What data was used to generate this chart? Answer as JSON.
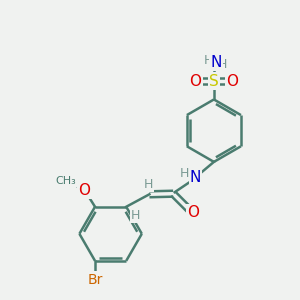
{
  "background_color": "#f0f2f0",
  "bond_color": "#4a7c6f",
  "bond_width": 1.8,
  "S_color": "#c8c800",
  "O_color": "#e00000",
  "N_color": "#0000cc",
  "Br_color": "#cc6600",
  "H_color": "#7a9a94",
  "C_color": "#4a7c6f",
  "font_size": 9,
  "fig_width": 3.0,
  "fig_height": 3.0,
  "dpi": 100,
  "xlim": [
    0,
    10
  ],
  "ylim": [
    0,
    10
  ]
}
